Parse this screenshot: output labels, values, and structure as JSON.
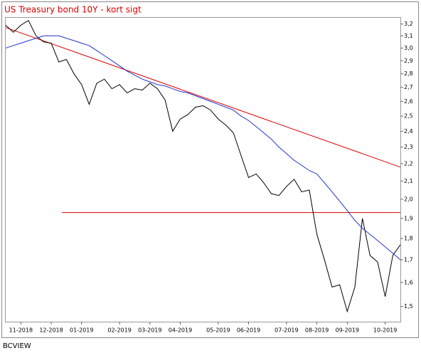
{
  "chart_data": {
    "type": "line",
    "title": "US Treasury bond 10Y - kort sigt",
    "source": "BCVIEW",
    "categories": [
      null,
      null,
      "11-2018",
      null,
      null,
      null,
      "12-2018",
      null,
      null,
      null,
      "01-2019",
      null,
      null,
      null,
      null,
      "02-2019",
      null,
      null,
      null,
      "03-2019",
      null,
      null,
      null,
      "04-2019",
      null,
      null,
      null,
      null,
      "05-2019",
      null,
      null,
      null,
      "06-2019",
      null,
      null,
      null,
      null,
      "07-2019",
      null,
      null,
      null,
      "08-2019",
      null,
      null,
      null,
      "09-2019",
      null,
      null,
      null,
      null,
      "10-2019",
      null,
      null
    ],
    "series": [
      {
        "color": "#000000",
        "values": [
          3.19,
          3.13,
          3.19,
          3.23,
          3.1,
          3.05,
          3.04,
          2.89,
          2.91,
          2.8,
          2.72,
          2.58,
          2.73,
          2.76,
          2.69,
          2.72,
          2.66,
          2.69,
          2.68,
          2.73,
          2.69,
          2.61,
          2.4,
          2.48,
          2.51,
          2.56,
          2.57,
          2.54,
          2.48,
          2.44,
          2.39,
          2.25,
          2.12,
          2.14,
          2.09,
          2.03,
          2.02,
          2.07,
          2.11,
          2.04,
          2.05,
          1.82,
          1.7,
          1.58,
          1.59,
          1.48,
          1.58,
          1.9,
          1.72,
          1.69,
          1.54,
          1.72,
          1.77
        ]
      },
      {
        "color": "#2233cc",
        "values": [
          3.0,
          3.02,
          3.04,
          3.06,
          3.08,
          3.1,
          3.1,
          3.1,
          3.08,
          3.06,
          3.04,
          3.02,
          2.98,
          2.94,
          2.9,
          2.86,
          2.82,
          2.79,
          2.76,
          2.74,
          2.72,
          2.71,
          2.69,
          2.67,
          2.66,
          2.64,
          2.62,
          2.6,
          2.58,
          2.56,
          2.54,
          2.5,
          2.47,
          2.43,
          2.39,
          2.35,
          2.3,
          2.26,
          2.22,
          2.19,
          2.16,
          2.14,
          2.09,
          2.04,
          1.99,
          1.94,
          1.89,
          1.85,
          1.82,
          1.79,
          1.76,
          1.73,
          1.7
        ]
      }
    ],
    "trendlines": [
      {
        "color": "#e00000",
        "x": [
          0,
          52
        ],
        "values": [
          3.17,
          2.18
        ]
      },
      {
        "color": "#e00000",
        "x": [
          7.4,
          52
        ],
        "values": [
          1.93,
          1.93
        ]
      }
    ],
    "log_scale": true,
    "ylim": [
      1.44,
      3.26
    ],
    "yticks": [
      {
        "value": 1.5,
        "label": "1,5"
      },
      {
        "value": 1.6,
        "label": "1,6"
      },
      {
        "value": 1.7,
        "label": "1,7"
      },
      {
        "value": 1.8,
        "label": "1,8"
      },
      {
        "value": 1.9,
        "label": "1,9"
      },
      {
        "value": 2.0,
        "label": "2,0"
      },
      {
        "value": 2.1,
        "label": "2,1"
      },
      {
        "value": 2.2,
        "label": "2,2"
      },
      {
        "value": 2.3,
        "label": "2,3"
      },
      {
        "value": 2.4,
        "label": "2,4"
      },
      {
        "value": 2.5,
        "label": "2,5"
      },
      {
        "value": 2.6,
        "label": "2,6"
      },
      {
        "value": 2.7,
        "label": "2,7"
      },
      {
        "value": 2.8,
        "label": "2,8"
      },
      {
        "value": 2.9,
        "label": "2,9"
      },
      {
        "value": 3.0,
        "label": "3,0"
      },
      {
        "value": 3.1,
        "label": "3,1"
      },
      {
        "value": 3.2,
        "label": "3,2"
      }
    ],
    "title_color": "#e00000"
  }
}
